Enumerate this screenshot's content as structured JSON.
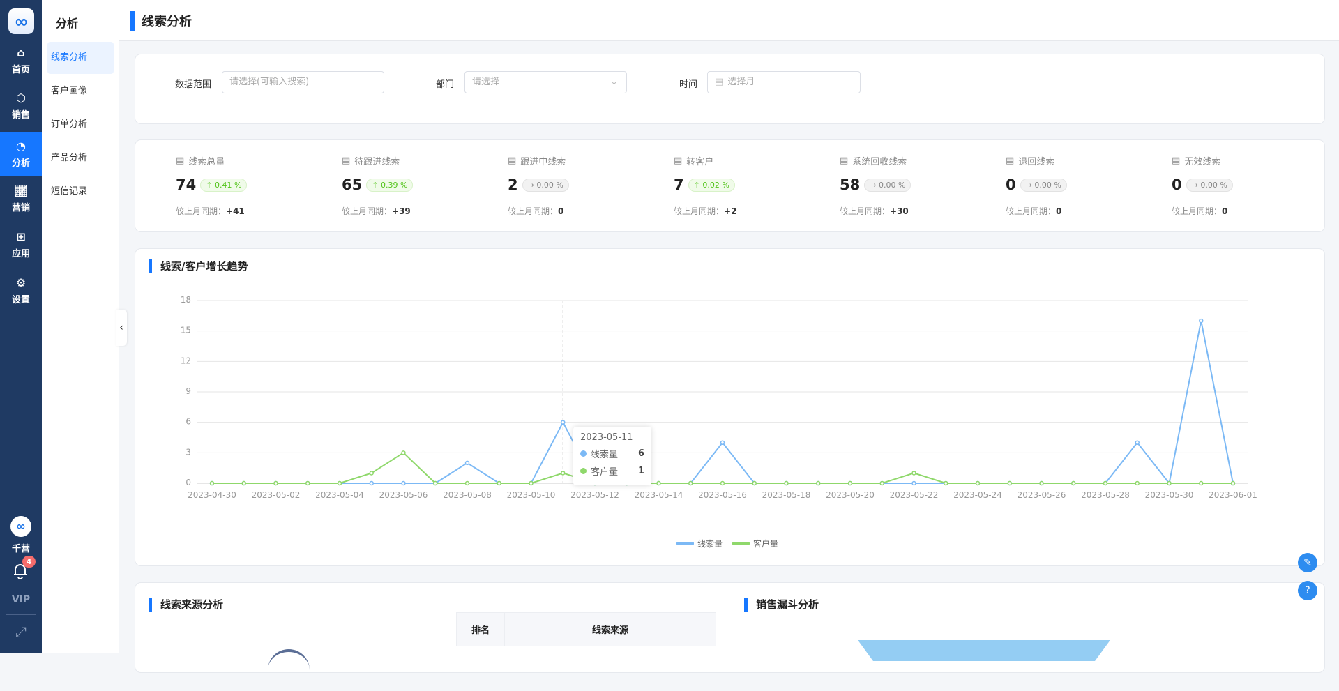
{
  "rail": {
    "logo": "∞",
    "items": [
      {
        "label": "首页",
        "icon": "home-icon"
      },
      {
        "label": "销售",
        "icon": "sales-icon"
      },
      {
        "label": "分析",
        "icon": "pie-chart-icon",
        "active": true
      },
      {
        "label": "营销",
        "icon": "line-chart-icon"
      },
      {
        "label": "应用",
        "icon": "apps-icon"
      },
      {
        "label": "设置",
        "icon": "gear-icon"
      }
    ],
    "brand": "千营",
    "notifications": "4",
    "vip": "VIP"
  },
  "sub": {
    "title": "分析",
    "items": [
      "线索分析",
      "客户画像",
      "订单分析",
      "产品分析",
      "短信记录"
    ]
  },
  "header": {
    "title": "线索分析"
  },
  "filters": {
    "range_label": "数据范围",
    "range_placeholder": "请选择(可输入搜索)",
    "dept_label": "部门",
    "dept_placeholder": "请选择",
    "time_label": "时间",
    "time_placeholder": "选择月"
  },
  "stats": [
    {
      "title": "线索总量",
      "value": "74",
      "change": "0.41 %",
      "trend": "up",
      "compare_label": "较上月同期：",
      "compare": "+41"
    },
    {
      "title": "待跟进线索",
      "value": "65",
      "change": "0.39 %",
      "trend": "up",
      "compare_label": "较上月同期：",
      "compare": "+39"
    },
    {
      "title": "跟进中线索",
      "value": "2",
      "change": "0.00 %",
      "trend": "flat",
      "compare_label": "较上月同期：",
      "compare": "0"
    },
    {
      "title": "转客户",
      "value": "7",
      "change": "0.02 %",
      "trend": "up",
      "compare_label": "较上月同期：",
      "compare": "+2"
    },
    {
      "title": "系统回收线索",
      "value": "58",
      "change": "0.00 %",
      "trend": "flat",
      "compare_label": "较上月同期：",
      "compare": "+30"
    },
    {
      "title": "退回线索",
      "value": "0",
      "change": "0.00 %",
      "trend": "flat",
      "compare_label": "较上月同期：",
      "compare": "0"
    },
    {
      "title": "无效线索",
      "value": "0",
      "change": "0.00 %",
      "trend": "flat",
      "compare_label": "较上月同期：",
      "compare": "0"
    }
  ],
  "trend": {
    "title": "线索/客户增长趋势",
    "tooltip": {
      "date": "2023-05-11",
      "rows": [
        {
          "name": "线索量",
          "value": "6"
        },
        {
          "name": "客户量",
          "value": "1"
        }
      ]
    }
  },
  "chart_data": {
    "type": "line",
    "ylim": [
      0,
      18
    ],
    "yticks": [
      0,
      3,
      6,
      9,
      12,
      15,
      18
    ],
    "grid": true,
    "legend": "bottom",
    "x": [
      "2023-04-30",
      "2023-05-01",
      "2023-05-02",
      "2023-05-03",
      "2023-05-04",
      "2023-05-05",
      "2023-05-06",
      "2023-05-07",
      "2023-05-08",
      "2023-05-09",
      "2023-05-10",
      "2023-05-11",
      "2023-05-12",
      "2023-05-13",
      "2023-05-14",
      "2023-05-15",
      "2023-05-16",
      "2023-05-17",
      "2023-05-18",
      "2023-05-19",
      "2023-05-20",
      "2023-05-21",
      "2023-05-22",
      "2023-05-23",
      "2023-05-24",
      "2023-05-25",
      "2023-05-26",
      "2023-05-27",
      "2023-05-28",
      "2023-05-29",
      "2023-05-30",
      "2023-05-31",
      "2023-06-01"
    ],
    "series": [
      {
        "name": "线索量",
        "color": "#7cb9f5",
        "values": [
          0,
          0,
          0,
          0,
          0,
          0,
          0,
          0,
          2,
          0,
          0,
          6,
          0,
          0,
          0,
          0,
          4,
          0,
          0,
          0,
          0,
          0,
          0,
          0,
          0,
          0,
          0,
          0,
          0,
          4,
          0,
          16,
          0
        ]
      },
      {
        "name": "客户量",
        "color": "#8fd86b",
        "values": [
          0,
          0,
          0,
          0,
          0,
          1,
          3,
          0,
          0,
          0,
          0,
          1,
          0,
          0,
          0,
          0,
          0,
          0,
          0,
          0,
          0,
          0,
          1,
          0,
          0,
          0,
          0,
          0,
          0,
          0,
          0,
          0,
          0
        ]
      }
    ]
  },
  "source": {
    "title": "线索来源分析",
    "col_rank": "排名",
    "col_source": "线索来源"
  },
  "funnel": {
    "title": "销售漏斗分析",
    "color": "#94cdf3"
  },
  "accent": "#1677ff"
}
